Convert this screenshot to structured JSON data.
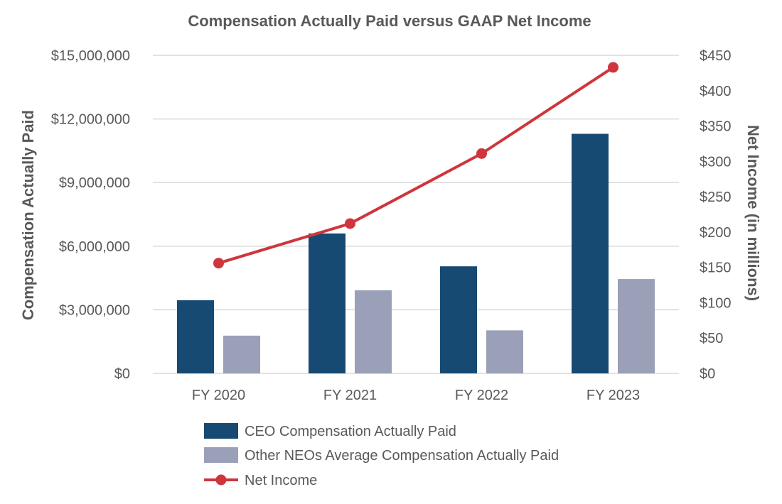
{
  "chart_data": {
    "type": "bar+line",
    "title": "Compensation Actually Paid versus GAAP Net Income",
    "categories": [
      "FY 2020",
      "FY 2021",
      "FY 2022",
      "FY 2023"
    ],
    "ylabel": "Compensation Actually Paid",
    "y2label": "Net Income (in millions)",
    "ylim": [
      0,
      15000000
    ],
    "y2lim": [
      0,
      450
    ],
    "y_ticks": [
      0,
      3000000,
      6000000,
      9000000,
      12000000,
      15000000
    ],
    "y_tick_labels": [
      "$0",
      "$3,000,000",
      "$6,000,000",
      "$9,000,000",
      "$12,000,000",
      "$15,000,000"
    ],
    "y2_ticks": [
      0,
      50,
      100,
      150,
      200,
      250,
      300,
      350,
      400,
      450
    ],
    "y2_tick_labels": [
      "$0",
      "$50",
      "$100",
      "$150",
      "$200",
      "$250",
      "$300",
      "$350",
      "$400",
      "$450"
    ],
    "grid": true,
    "legend_position": "bottom",
    "series": [
      {
        "name": "CEO Compensation Actually Paid",
        "kind": "bar",
        "axis": "left",
        "color": "#174a72",
        "values": [
          3450000,
          6600000,
          5050000,
          11300000
        ]
      },
      {
        "name": "Other NEOs Average Compensation Actually Paid",
        "kind": "bar",
        "axis": "left",
        "color": "#9ba0b9",
        "values": [
          1780000,
          3920000,
          2030000,
          4450000
        ]
      },
      {
        "name": "Net Income",
        "kind": "line",
        "axis": "right",
        "color": "#cf353c",
        "values": [
          156,
          212,
          311,
          433
        ]
      }
    ]
  }
}
